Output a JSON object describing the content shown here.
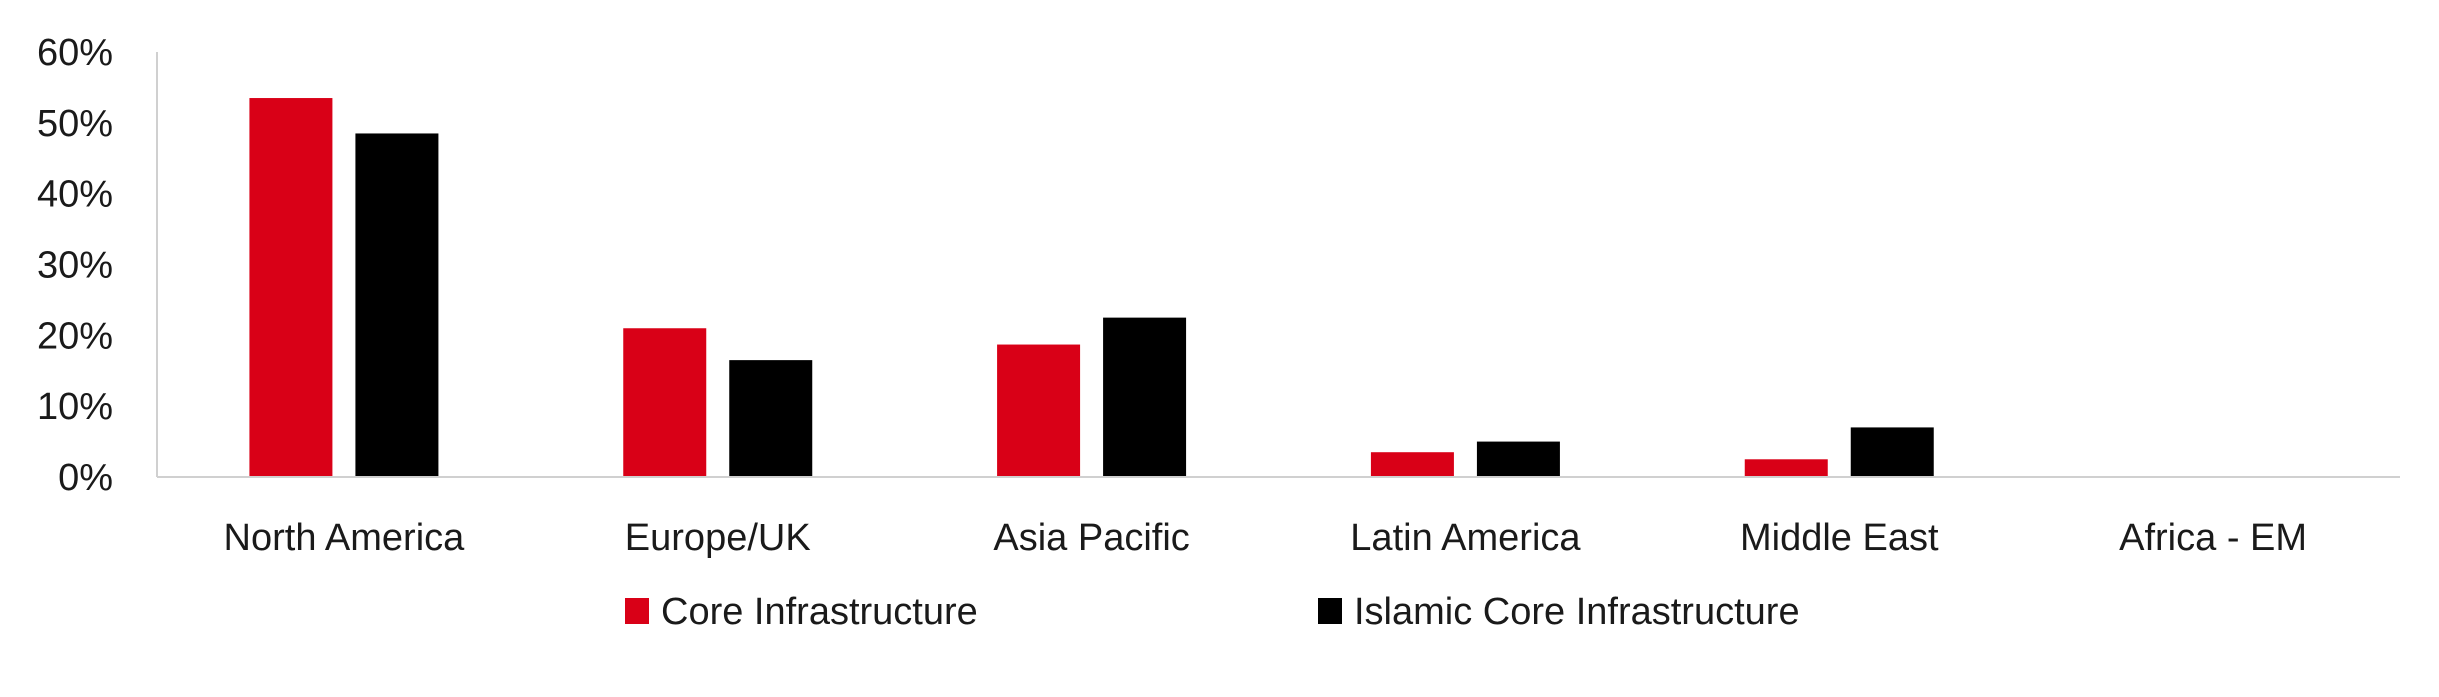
{
  "chart_data": {
    "type": "bar",
    "categories": [
      "North America",
      "Europe/UK",
      "Asia Pacific",
      "Latin America",
      "Middle East",
      "Africa - EM"
    ],
    "series": [
      {
        "name": "Core Infrastructure",
        "color": "#d90017",
        "values": [
          53.5,
          21.0,
          18.7,
          3.5,
          2.5,
          0
        ]
      },
      {
        "name": "Islamic Core Infrastructure",
        "color": "#000000",
        "values": [
          48.5,
          16.5,
          22.5,
          5.0,
          7.0,
          0
        ]
      }
    ],
    "ylim": [
      0,
      60
    ],
    "yticks": [
      "0%",
      "10%",
      "20%",
      "30%",
      "40%",
      "50%",
      "60%"
    ],
    "grid": false,
    "legend": "bottom-center",
    "title": "",
    "xlabel": "",
    "ylabel": ""
  }
}
